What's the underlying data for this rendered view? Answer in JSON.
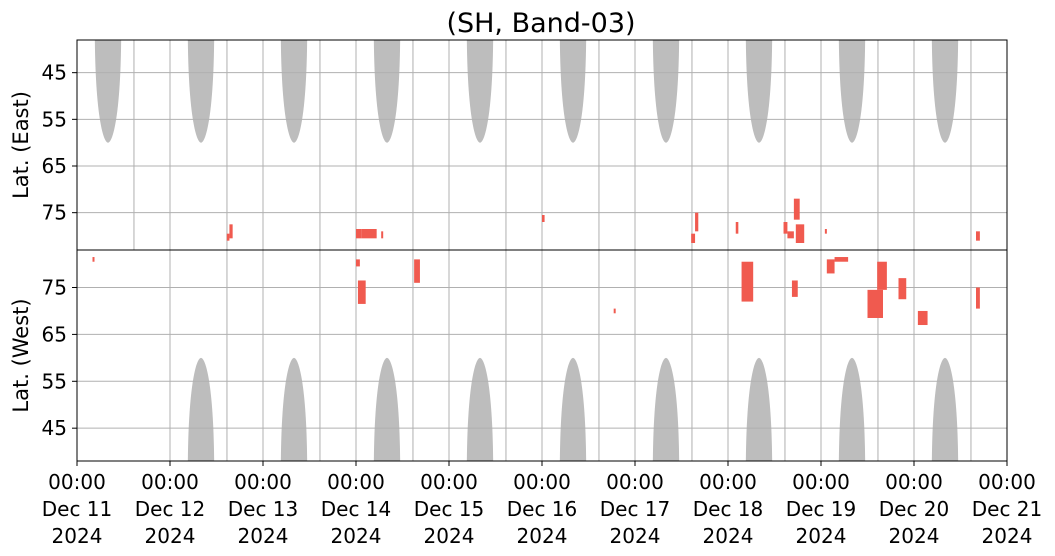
{
  "chart_data": {
    "type": "heatmap",
    "title": "(SH, Band-03)",
    "colors": {
      "coverage": "#bdbdbd",
      "detection": "#f05a4f",
      "grid": "#b0b0b0",
      "background": "#ffffff"
    },
    "x": {
      "range": [
        "2024-12-11 00:00",
        "2024-12-21 00:00"
      ],
      "ticks": [
        {
          "date": "2024-12-11",
          "lines": [
            "00:00",
            "Dec 11",
            "2024"
          ]
        },
        {
          "date": "2024-12-12",
          "lines": [
            "00:00",
            "Dec 12",
            "2024"
          ]
        },
        {
          "date": "2024-12-13",
          "lines": [
            "00:00",
            "Dec 13",
            "2024"
          ]
        },
        {
          "date": "2024-12-14",
          "lines": [
            "00:00",
            "Dec 14",
            "2024"
          ]
        },
        {
          "date": "2024-12-15",
          "lines": [
            "00:00",
            "Dec 15",
            "2024"
          ]
        },
        {
          "date": "2024-12-16",
          "lines": [
            "00:00",
            "Dec 16",
            "2024"
          ]
        },
        {
          "date": "2024-12-17",
          "lines": [
            "00:00",
            "Dec 17",
            "2024"
          ]
        },
        {
          "date": "2024-12-18",
          "lines": [
            "00:00",
            "Dec 18",
            "2024"
          ]
        },
        {
          "date": "2024-12-19",
          "lines": [
            "00:00",
            "Dec 19",
            "2024"
          ]
        },
        {
          "date": "2024-12-20",
          "lines": [
            "00:00",
            "Dec 20",
            "2024"
          ]
        },
        {
          "date": "2024-12-21",
          "lines": [
            "00:00",
            "Dec 21",
            "2024"
          ]
        }
      ]
    },
    "panels": [
      {
        "name": "east",
        "ylabel": "Lat. (East)",
        "ylim": [
          83,
          38
        ],
        "yticks": [
          45,
          55,
          65,
          75
        ],
        "coverage_lobes": [
          {
            "center": "2024-12-11 08:00",
            "half_width_hours": 3.4
          },
          {
            "center": "2024-12-12 08:00",
            "half_width_hours": 3.4
          },
          {
            "center": "2024-12-13 08:00",
            "half_width_hours": 3.4
          },
          {
            "center": "2024-12-14 08:00",
            "half_width_hours": 3.4
          },
          {
            "center": "2024-12-15 08:00",
            "half_width_hours": 3.4
          },
          {
            "center": "2024-12-16 08:00",
            "half_width_hours": 3.4
          },
          {
            "center": "2024-12-17 08:00",
            "half_width_hours": 3.4
          },
          {
            "center": "2024-12-18 08:00",
            "half_width_hours": 3.4
          },
          {
            "center": "2024-12-19 08:00",
            "half_width_hours": 3.4
          },
          {
            "center": "2024-12-20 08:00",
            "half_width_hours": 3.4
          }
        ],
        "detections": [
          {
            "start": "2024-12-12 14:40",
            "end": "2024-12-12 15:20",
            "lat": [
              79.5,
              81.0
            ]
          },
          {
            "start": "2024-12-12 15:20",
            "end": "2024-12-12 16:10",
            "lat": [
              77.5,
              80.5
            ]
          },
          {
            "start": "2024-12-14 00:00",
            "end": "2024-12-14 01:30",
            "lat": [
              78.5,
              80.5
            ]
          },
          {
            "start": "2024-12-14 01:30",
            "end": "2024-12-14 05:20",
            "lat": [
              78.5,
              80.5
            ]
          },
          {
            "start": "2024-12-14 06:30",
            "end": "2024-12-14 07:00",
            "lat": [
              79.0,
              80.5
            ]
          },
          {
            "start": "2024-12-16 00:00",
            "end": "2024-12-16 00:40",
            "lat": [
              75.5,
              77.0
            ]
          },
          {
            "start": "2024-12-17 14:30",
            "end": "2024-12-17 15:30",
            "lat": [
              79.5,
              81.5
            ]
          },
          {
            "start": "2024-12-17 15:30",
            "end": "2024-12-17 16:20",
            "lat": [
              75.0,
              79.0
            ]
          },
          {
            "start": "2024-12-18 02:00",
            "end": "2024-12-18 02:40",
            "lat": [
              77.0,
              79.5
            ]
          },
          {
            "start": "2024-12-18 14:20",
            "end": "2024-12-18 15:20",
            "lat": [
              77.0,
              79.5
            ]
          },
          {
            "start": "2024-12-18 15:20",
            "end": "2024-12-18 17:00",
            "lat": [
              79.0,
              80.5
            ]
          },
          {
            "start": "2024-12-18 17:00",
            "end": "2024-12-18 18:30",
            "lat": [
              72.0,
              76.5
            ]
          },
          {
            "start": "2024-12-18 17:30",
            "end": "2024-12-18 19:40",
            "lat": [
              77.5,
              81.5
            ]
          },
          {
            "start": "2024-12-19 01:00",
            "end": "2024-12-19 01:30",
            "lat": [
              78.5,
              79.5
            ]
          },
          {
            "start": "2024-12-20 16:00",
            "end": "2024-12-20 17:00",
            "lat": [
              79.0,
              81.0
            ]
          }
        ]
      },
      {
        "name": "west",
        "ylabel": "Lat. (West)",
        "ylim": [
          83,
          38
        ],
        "yticks": [
          75,
          65,
          55,
          45
        ],
        "coverage_lobes": [
          {
            "center": "2024-12-12 08:00",
            "half_width_hours": 3.4
          },
          {
            "center": "2024-12-13 08:00",
            "half_width_hours": 3.4
          },
          {
            "center": "2024-12-14 08:00",
            "half_width_hours": 3.4
          },
          {
            "center": "2024-12-15 08:00",
            "half_width_hours": 3.4
          },
          {
            "center": "2024-12-16 08:00",
            "half_width_hours": 3.4
          },
          {
            "center": "2024-12-17 08:00",
            "half_width_hours": 3.4
          },
          {
            "center": "2024-12-18 08:00",
            "half_width_hours": 3.4
          },
          {
            "center": "2024-12-19 08:00",
            "half_width_hours": 3.4
          },
          {
            "center": "2024-12-20 08:00",
            "half_width_hours": 3.4
          }
        ],
        "detections": [
          {
            "start": "2024-12-11 04:00",
            "end": "2024-12-11 04:30",
            "lat": [
              80.5,
              81.5
            ]
          },
          {
            "start": "2024-12-14 00:00",
            "end": "2024-12-14 01:00",
            "lat": [
              79.5,
              81.0
            ]
          },
          {
            "start": "2024-12-14 00:30",
            "end": "2024-12-14 02:30",
            "lat": [
              71.5,
              76.5
            ]
          },
          {
            "start": "2024-12-14 15:00",
            "end": "2024-12-14 16:30",
            "lat": [
              76.0,
              81.0
            ]
          },
          {
            "start": "2024-12-16 18:30",
            "end": "2024-12-16 19:00",
            "lat": [
              69.5,
              70.5
            ]
          },
          {
            "start": "2024-12-18 03:30",
            "end": "2024-12-18 06:30",
            "lat": [
              72.0,
              80.5
            ]
          },
          {
            "start": "2024-12-18 16:30",
            "end": "2024-12-18 18:00",
            "lat": [
              73.0,
              76.5
            ]
          },
          {
            "start": "2024-12-19 01:30",
            "end": "2024-12-19 03:30",
            "lat": [
              78.0,
              81.0
            ]
          },
          {
            "start": "2024-12-19 03:30",
            "end": "2024-12-19 07:00",
            "lat": [
              80.5,
              81.5
            ]
          },
          {
            "start": "2024-12-19 12:00",
            "end": "2024-12-19 16:00",
            "lat": [
              68.5,
              74.5
            ]
          },
          {
            "start": "2024-12-19 14:30",
            "end": "2024-12-19 17:00",
            "lat": [
              74.5,
              80.5
            ]
          },
          {
            "start": "2024-12-19 20:00",
            "end": "2024-12-19 22:00",
            "lat": [
              72.5,
              77.0
            ]
          },
          {
            "start": "2024-12-20 01:00",
            "end": "2024-12-20 03:30",
            "lat": [
              67.0,
              70.0
            ]
          },
          {
            "start": "2024-12-20 16:00",
            "end": "2024-12-20 17:00",
            "lat": [
              70.5,
              75.0
            ]
          }
        ]
      }
    ]
  }
}
